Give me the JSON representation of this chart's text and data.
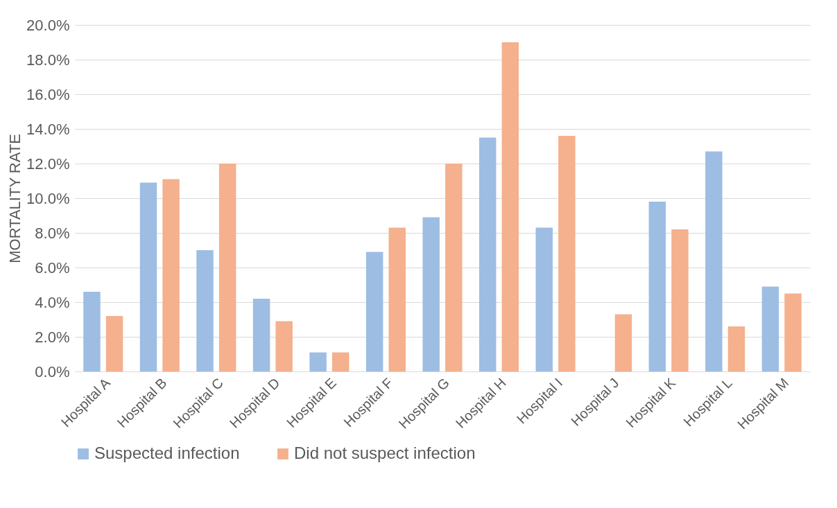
{
  "chart_data": {
    "type": "bar",
    "ylabel": "MORTALITY RATE",
    "categories": [
      "Hospital A",
      "Hospital B",
      "Hospital C",
      "Hospital D",
      "Hospital E",
      "Hospital F",
      "Hospital G",
      "Hospital H",
      "Hospital I",
      "Hospital J",
      "Hospital K",
      "Hospital L",
      "Hospital M"
    ],
    "series": [
      {
        "name": "Suspected infection",
        "color": "#9dbde3",
        "values": [
          4.6,
          10.9,
          7.0,
          4.2,
          1.1,
          6.9,
          8.9,
          13.5,
          8.3,
          null,
          9.8,
          12.7,
          4.9
        ]
      },
      {
        "name": "Did not suspect infection",
        "color": "#f5b08d",
        "values": [
          3.2,
          11.1,
          12.0,
          2.9,
          1.1,
          8.3,
          12.0,
          19.0,
          13.6,
          3.3,
          8.2,
          2.6,
          4.5
        ]
      }
    ],
    "ylim": [
      0,
      20
    ],
    "yticks": [
      {
        "value": 0,
        "label": "0.0%"
      },
      {
        "value": 2,
        "label": "2.0%"
      },
      {
        "value": 4,
        "label": "4.0%"
      },
      {
        "value": 6,
        "label": "6.0%"
      },
      {
        "value": 8,
        "label": "8.0%"
      },
      {
        "value": 10,
        "label": "10.0%"
      },
      {
        "value": 12,
        "label": "12.0%"
      },
      {
        "value": 14,
        "label": "14.0%"
      },
      {
        "value": 16,
        "label": "16.0%"
      },
      {
        "value": 18,
        "label": "18.0%"
      },
      {
        "value": 20,
        "label": "20.0%"
      }
    ],
    "grid": "y",
    "legend": "bottom"
  }
}
